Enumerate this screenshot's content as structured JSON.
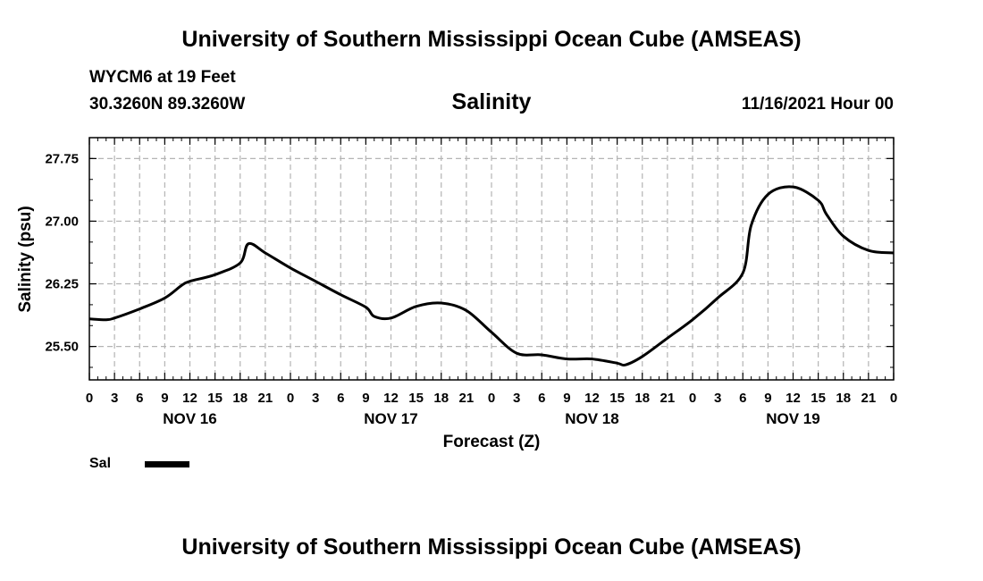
{
  "header": {
    "title": "University of Southern Mississippi Ocean Cube (AMSEAS)",
    "station": "WYCM6 at 19 Feet",
    "coords": "30.3260N  89.3260W",
    "datetime": "11/16/2021 Hour 00"
  },
  "footer": {
    "title": "University of Southern Mississippi Ocean Cube (AMSEAS)"
  },
  "chart_data": {
    "type": "line",
    "title": "Salinity",
    "xlabel": "Forecast (Z)",
    "ylabel": "Salinity (psu)",
    "xlim": [
      0,
      96
    ],
    "ylim": [
      25.1,
      28.0
    ],
    "grid": true,
    "y_ticks": [
      25.5,
      26.25,
      27.0,
      27.75
    ],
    "y_tick_labels": [
      "25.50",
      "26.25",
      "27.00",
      "27.75"
    ],
    "x_ticks": [
      0,
      3,
      6,
      9,
      12,
      15,
      18,
      21,
      24,
      27,
      30,
      33,
      36,
      39,
      42,
      45,
      48,
      51,
      54,
      57,
      60,
      63,
      66,
      69,
      72,
      75,
      78,
      81,
      84,
      87,
      90,
      93,
      96
    ],
    "x_tick_labels": [
      "0",
      "3",
      "6",
      "9",
      "12",
      "15",
      "18",
      "21",
      "0",
      "3",
      "6",
      "9",
      "12",
      "15",
      "18",
      "21",
      "0",
      "3",
      "6",
      "9",
      "12",
      "15",
      "18",
      "21",
      "0",
      "3",
      "6",
      "9",
      "12",
      "15",
      "18",
      "21",
      "0"
    ],
    "day_labels": [
      {
        "hour": 12,
        "label": "NOV 16"
      },
      {
        "hour": 36,
        "label": "NOV 17"
      },
      {
        "hour": 60,
        "label": "NOV 18"
      },
      {
        "hour": 84,
        "label": "NOV 19"
      }
    ],
    "series": [
      {
        "name": "Sal",
        "color": "#000000",
        "x": [
          0,
          2,
          3,
          6,
          9,
          11,
          12,
          15,
          18,
          19,
          21,
          24,
          27,
          30,
          33,
          34,
          36,
          39,
          42,
          45,
          48,
          51,
          54,
          57,
          60,
          63,
          64,
          66,
          69,
          72,
          75,
          78,
          79,
          81,
          84,
          87,
          88,
          90,
          93,
          96
        ],
        "y": [
          25.83,
          25.82,
          25.84,
          25.95,
          26.08,
          26.23,
          26.28,
          26.36,
          26.5,
          26.73,
          26.62,
          26.44,
          26.28,
          26.12,
          25.97,
          25.86,
          25.84,
          25.98,
          26.02,
          25.93,
          25.67,
          25.42,
          25.4,
          25.35,
          25.35,
          25.3,
          25.28,
          25.38,
          25.6,
          25.82,
          26.08,
          26.38,
          26.95,
          27.32,
          27.41,
          27.25,
          27.08,
          26.82,
          26.65,
          26.62
        ]
      }
    ]
  }
}
